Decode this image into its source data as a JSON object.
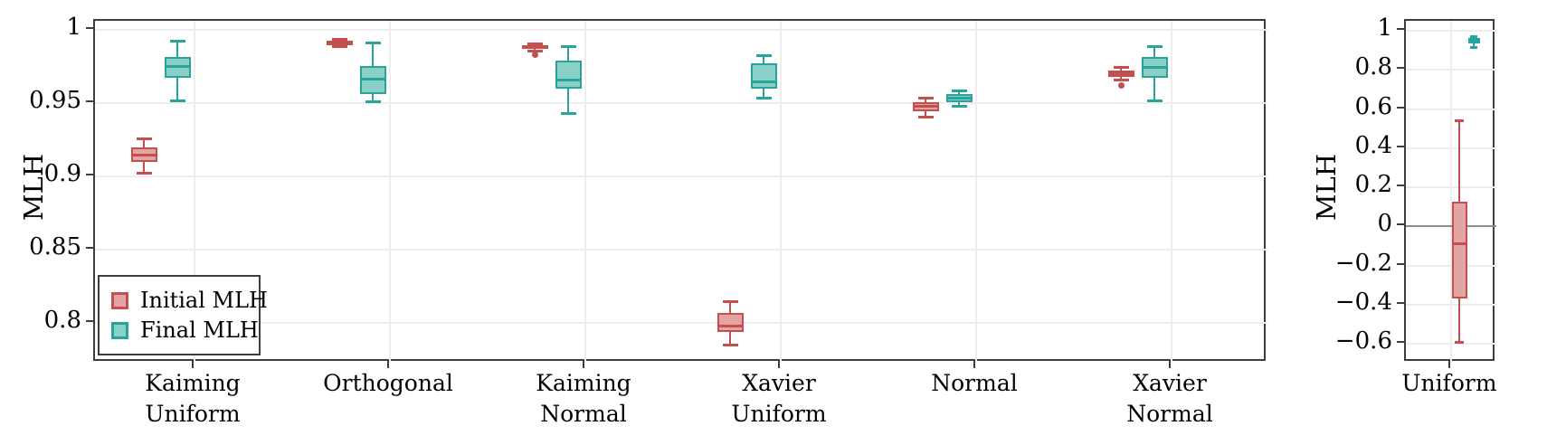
{
  "figure": {
    "background": "#ffffff"
  },
  "colors": {
    "initial_stroke": "#c34f4f",
    "initial_fill": "#e3a5a3",
    "final_stroke": "#27a59d",
    "final_fill": "#8ad0c9",
    "grid": "#ededed",
    "axis_border": "#3d3d3d",
    "zero_line": "#8d8d8d",
    "text": "#000000"
  },
  "legend": {
    "position": "lower left",
    "items": [
      {
        "series": "initial",
        "label": "Initial MLH"
      },
      {
        "series": "final",
        "label": "Final MLH"
      }
    ]
  },
  "chart_data": [
    {
      "type": "boxplot",
      "panel": "left",
      "title": "",
      "xlabel": "",
      "ylabel": "MLH",
      "ylim": [
        0.773,
        1.006
      ],
      "grid": true,
      "legend_position": "lower left",
      "yticks": [
        {
          "v": 1.0,
          "label": "1"
        },
        {
          "v": 0.95,
          "label": "0.95"
        },
        {
          "v": 0.9,
          "label": "0.9"
        },
        {
          "v": 0.85,
          "label": "0.85"
        },
        {
          "v": 0.8,
          "label": "0.8"
        }
      ],
      "categories": [
        [
          "Kaiming",
          "Uniform"
        ],
        [
          "Orthogonal"
        ],
        [
          "Kaiming",
          "Normal"
        ],
        [
          "Xavier",
          "Uniform"
        ],
        [
          "Normal"
        ],
        [
          "Xavier",
          "Normal"
        ]
      ],
      "series": [
        {
          "id": "initial",
          "name": "Initial MLH",
          "stroke": "#c34f4f",
          "fill": "#e3a5a3",
          "boxes": [
            {
              "whislo": 0.902,
              "q1": 0.91,
              "med": 0.9145,
              "q3": 0.92,
              "whishi": 0.9255,
              "outliers": []
            },
            {
              "whislo": 0.9885,
              "q1": 0.9895,
              "med": 0.991,
              "q3": 0.9925,
              "whishi": 0.9935,
              "outliers": []
            },
            {
              "whislo": 0.9855,
              "q1": 0.987,
              "med": 0.988,
              "q3": 0.9895,
              "whishi": 0.9905,
              "outliers": [
                0.983
              ]
            },
            {
              "whislo": 0.785,
              "q1": 0.794,
              "med": 0.798,
              "q3": 0.807,
              "whishi": 0.8145,
              "outliers": []
            },
            {
              "whislo": 0.9405,
              "q1": 0.9445,
              "med": 0.9475,
              "q3": 0.9505,
              "whishi": 0.953,
              "outliers": []
            },
            {
              "whislo": 0.9655,
              "q1": 0.968,
              "med": 0.97,
              "q3": 0.972,
              "whishi": 0.974,
              "outliers": [
                0.962
              ]
            }
          ]
        },
        {
          "id": "final",
          "name": "Final MLH",
          "stroke": "#27a59d",
          "fill": "#8ad0c9",
          "boxes": [
            {
              "whislo": 0.9515,
              "q1": 0.967,
              "med": 0.975,
              "q3": 0.9815,
              "whishi": 0.992,
              "outliers": []
            },
            {
              "whislo": 0.951,
              "q1": 0.956,
              "med": 0.966,
              "q3": 0.975,
              "whishi": 0.991,
              "outliers": []
            },
            {
              "whislo": 0.943,
              "q1": 0.96,
              "med": 0.9655,
              "q3": 0.979,
              "whishi": 0.9885,
              "outliers": []
            },
            {
              "whislo": 0.953,
              "q1": 0.96,
              "med": 0.9645,
              "q3": 0.977,
              "whishi": 0.982,
              "outliers": []
            },
            {
              "whislo": 0.9475,
              "q1": 0.9505,
              "med": 0.953,
              "q3": 0.956,
              "whishi": 0.9585,
              "outliers": []
            },
            {
              "whislo": 0.9515,
              "q1": 0.967,
              "med": 0.9745,
              "q3": 0.9815,
              "whishi": 0.9885,
              "outliers": []
            }
          ]
        }
      ]
    },
    {
      "type": "boxplot",
      "panel": "right",
      "title": "",
      "xlabel": "",
      "ylabel": "MLH",
      "ylim": [
        -0.696,
        1.051
      ],
      "grid": true,
      "zero_line": true,
      "yticks": [
        {
          "v": 1.0,
          "label": "1"
        },
        {
          "v": 0.8,
          "label": "0.8"
        },
        {
          "v": 0.6,
          "label": "0.6"
        },
        {
          "v": 0.4,
          "label": "0.4"
        },
        {
          "v": 0.2,
          "label": "0.2"
        },
        {
          "v": 0.0,
          "label": "0"
        },
        {
          "v": -0.2,
          "label": "−0.2"
        },
        {
          "v": -0.4,
          "label": "−0.4"
        },
        {
          "v": -0.6,
          "label": "−0.6"
        }
      ],
      "categories": [
        [
          "Uniform"
        ]
      ],
      "series": [
        {
          "id": "initial",
          "name": "Initial MLH",
          "stroke": "#c34f4f",
          "fill": "#e3a5a3",
          "boxes": [
            {
              "whislo": -0.59,
              "q1": -0.37,
              "med": -0.09,
              "q3": 0.125,
              "whishi": 0.54,
              "outliers": []
            }
          ]
        },
        {
          "id": "final",
          "name": "Final MLH",
          "stroke": "#27a59d",
          "fill": "#8ad0c9",
          "boxes": [
            {
              "whislo": 0.915,
              "q1": 0.935,
              "med": 0.951,
              "q3": 0.965,
              "whishi": 0.968,
              "outliers": []
            }
          ]
        }
      ]
    }
  ]
}
